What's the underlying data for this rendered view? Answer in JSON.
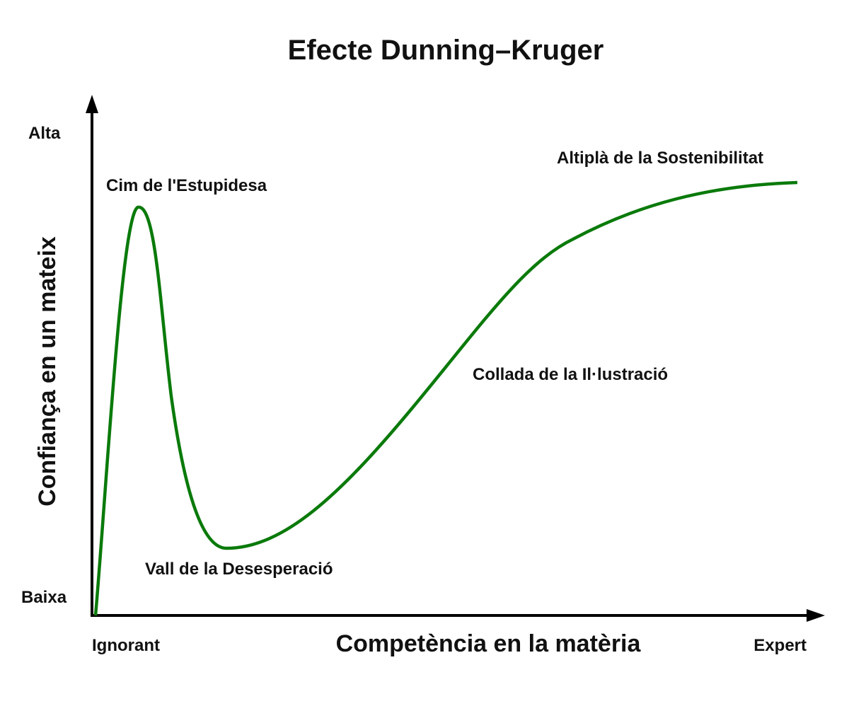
{
  "title": "Efecte Dunning–Kruger",
  "y_axis": {
    "title": "Confiança en un mateix",
    "high": "Alta",
    "low": "Baixa"
  },
  "x_axis": {
    "title": "Competència en la matèria",
    "low": "Ignorant",
    "high": "Expert"
  },
  "annotations": [
    "Cim de l'Estupidesa",
    "Vall de la Desesperació",
    "Collada de la Il·lustració",
    "Altiplà de la Sostenibilitat"
  ]
}
